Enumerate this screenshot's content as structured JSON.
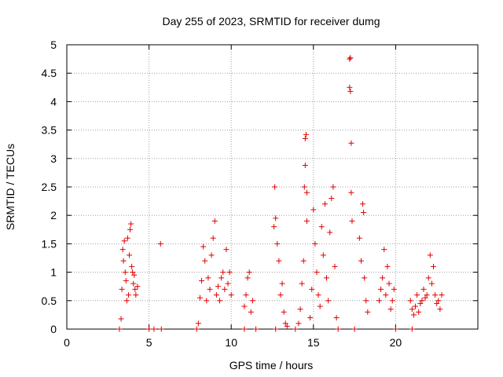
{
  "chart_data": {
    "type": "scatter",
    "title": "Day 255 of 2023, SRMTID for receiver dumg",
    "xlabel": "GPS time / hours",
    "ylabel": "SRMTID / TECUs",
    "xlim": [
      0,
      25
    ],
    "ylim": [
      0,
      5
    ],
    "xticks": [
      0,
      5,
      10,
      15,
      20
    ],
    "yticks": [
      0,
      0.5,
      1,
      1.5,
      2,
      2.5,
      3,
      3.5,
      4,
      4.5,
      5
    ],
    "xtick_labels": [
      "0",
      "5",
      "10",
      "15",
      "20"
    ],
    "ytick_labels": [
      "0",
      "0.5",
      "1",
      "1.5",
      "2",
      "2.5",
      "3",
      "3.5",
      "4",
      "4.5",
      "5"
    ],
    "grid": true,
    "marker": "+",
    "color": "#e00000",
    "series": [
      {
        "name": "SRMTID",
        "points": [
          [
            3.2,
            0
          ],
          [
            3.3,
            0.18
          ],
          [
            3.35,
            0.7
          ],
          [
            3.4,
            1.4
          ],
          [
            3.45,
            1.2
          ],
          [
            3.5,
            1.55
          ],
          [
            3.55,
            1.0
          ],
          [
            3.6,
            0.85
          ],
          [
            3.65,
            0.5
          ],
          [
            3.7,
            1.6
          ],
          [
            3.75,
            0.6
          ],
          [
            3.8,
            1.3
          ],
          [
            3.85,
            1.75
          ],
          [
            3.9,
            1.85
          ],
          [
            3.95,
            1.1
          ],
          [
            4.0,
            1.0
          ],
          [
            4.05,
            0.8
          ],
          [
            4.1,
            0.95
          ],
          [
            4.15,
            0.7
          ],
          [
            4.2,
            0.6
          ],
          [
            4.3,
            0.75
          ],
          [
            5.0,
            0
          ],
          [
            5.3,
            0
          ],
          [
            5.7,
            1.5
          ],
          [
            5.75,
            0
          ],
          [
            7.9,
            0
          ],
          [
            8.0,
            0.1
          ],
          [
            8.1,
            0.55
          ],
          [
            8.2,
            0.85
          ],
          [
            8.3,
            1.45
          ],
          [
            8.4,
            1.2
          ],
          [
            8.5,
            0.5
          ],
          [
            8.6,
            0.9
          ],
          [
            8.7,
            0.7
          ],
          [
            8.8,
            1.3
          ],
          [
            8.9,
            1.6
          ],
          [
            9.0,
            1.9
          ],
          [
            9.1,
            0.6
          ],
          [
            9.2,
            0.75
          ],
          [
            9.3,
            0.5
          ],
          [
            9.4,
            0.9
          ],
          [
            9.5,
            1.0
          ],
          [
            9.6,
            0.7
          ],
          [
            9.7,
            1.4
          ],
          [
            9.8,
            0.8
          ],
          [
            9.9,
            1.0
          ],
          [
            10.0,
            0.6
          ],
          [
            10.8,
            0.4
          ],
          [
            10.9,
            0.6
          ],
          [
            11.0,
            0.9
          ],
          [
            11.1,
            1.0
          ],
          [
            11.2,
            0.3
          ],
          [
            11.3,
            0.5
          ],
          [
            11.5,
            0
          ],
          [
            10.8,
            0
          ],
          [
            12.6,
            1.8
          ],
          [
            12.65,
            2.5
          ],
          [
            12.7,
            1.95
          ],
          [
            12.8,
            1.5
          ],
          [
            12.9,
            1.2
          ],
          [
            13.0,
            0.6
          ],
          [
            13.1,
            0.8
          ],
          [
            13.2,
            0.3
          ],
          [
            13.3,
            0.1
          ],
          [
            13.4,
            0.05
          ],
          [
            12.7,
            0
          ],
          [
            13.9,
            0
          ],
          [
            14.1,
            0.1
          ],
          [
            14.2,
            0.35
          ],
          [
            14.3,
            0.8
          ],
          [
            14.4,
            1.2
          ],
          [
            14.45,
            2.5
          ],
          [
            14.5,
            3.35
          ],
          [
            14.55,
            3.42
          ],
          [
            14.5,
            2.88
          ],
          [
            14.6,
            2.4
          ],
          [
            14.6,
            1.9
          ],
          [
            14.8,
            0.2
          ],
          [
            14.9,
            0.7
          ],
          [
            15.0,
            2.1
          ],
          [
            15.1,
            1.5
          ],
          [
            15.2,
            1.0
          ],
          [
            15.3,
            0.6
          ],
          [
            15.4,
            0.4
          ],
          [
            15.5,
            1.8
          ],
          [
            15.6,
            1.3
          ],
          [
            15.7,
            2.2
          ],
          [
            15.8,
            0.9
          ],
          [
            15.9,
            0.5
          ],
          [
            16.0,
            1.7
          ],
          [
            16.1,
            2.3
          ],
          [
            16.2,
            2.5
          ],
          [
            16.3,
            1.1
          ],
          [
            16.4,
            0.2
          ],
          [
            16.5,
            0
          ],
          [
            17.2,
            4.75
          ],
          [
            17.25,
            4.77
          ],
          [
            17.2,
            4.25
          ],
          [
            17.25,
            4.18
          ],
          [
            17.3,
            3.27
          ],
          [
            17.3,
            2.4
          ],
          [
            17.35,
            1.9
          ],
          [
            17.5,
            0
          ],
          [
            17.8,
            1.6
          ],
          [
            17.9,
            1.2
          ],
          [
            18.0,
            2.2
          ],
          [
            18.1,
            0.9
          ],
          [
            18.2,
            0.5
          ],
          [
            18.3,
            0.3
          ],
          [
            18.05,
            2.05
          ],
          [
            19.0,
            0.5
          ],
          [
            19.1,
            0.7
          ],
          [
            19.2,
            0.9
          ],
          [
            19.3,
            1.4
          ],
          [
            19.4,
            0.6
          ],
          [
            19.5,
            1.1
          ],
          [
            19.6,
            0.8
          ],
          [
            19.7,
            0.35
          ],
          [
            19.8,
            0.5
          ],
          [
            19.9,
            0.7
          ],
          [
            20.0,
            0
          ],
          [
            20.9,
            0.5
          ],
          [
            21.0,
            0.35
          ],
          [
            21.1,
            0.25
          ],
          [
            21.2,
            0.4
          ],
          [
            21.3,
            0.6
          ],
          [
            21.4,
            0.3
          ],
          [
            21.5,
            0.45
          ],
          [
            21.6,
            0.5
          ],
          [
            21.7,
            0.7
          ],
          [
            21.8,
            0.55
          ],
          [
            21.9,
            0.6
          ],
          [
            22.0,
            0.9
          ],
          [
            22.1,
            1.3
          ],
          [
            22.2,
            0.8
          ],
          [
            22.3,
            1.1
          ],
          [
            22.4,
            0.6
          ],
          [
            22.5,
            0.45
          ],
          [
            22.6,
            0.5
          ],
          [
            22.7,
            0.35
          ],
          [
            22.8,
            0.6
          ],
          [
            21.0,
            0
          ]
        ]
      }
    ]
  }
}
